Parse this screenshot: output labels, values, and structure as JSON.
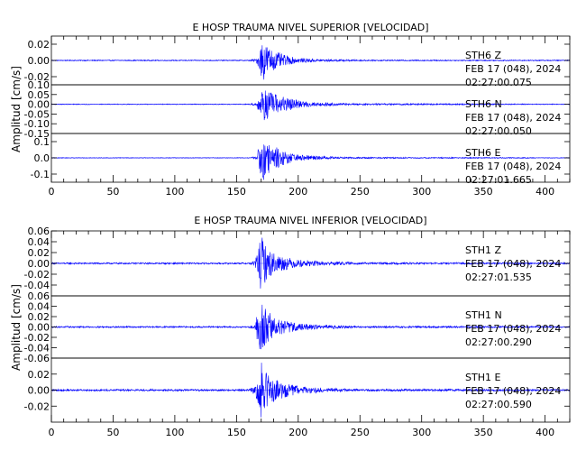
{
  "chart_data": [
    {
      "type": "line",
      "title": "E HOSP TRAUMA NIVEL SUPERIOR [VELOCIDAD]",
      "ylabel": "Amplitud [cm/s]",
      "xlabel": "",
      "xlim": [
        0,
        420
      ],
      "x_ticks": [
        "0",
        "50",
        "100",
        "150",
        "200",
        "250",
        "300",
        "350",
        "400"
      ],
      "line_color": "#0000ff",
      "series": [
        {
          "name": "STH6 Z",
          "annotation": [
            "STH6   Z",
            "FEB 17 (048), 2024",
            "02:27:00.075"
          ],
          "ylim": [
            -0.03,
            0.03
          ],
          "y_ticks": [
            "-0.02",
            "0.00",
            "0.02"
          ],
          "envelope": [
            [
              0,
              0.0006
            ],
            [
              160,
              0.0006
            ],
            [
              166,
              0.002
            ],
            [
              169,
              0.014
            ],
            [
              171,
              0.028
            ],
            [
              174,
              0.02
            ],
            [
              180,
              0.012
            ],
            [
              190,
              0.006
            ],
            [
              200,
              0.003
            ],
            [
              220,
              0.0015
            ],
            [
              260,
              0.0008
            ],
            [
              420,
              0.0006
            ]
          ]
        },
        {
          "name": "STH6 N",
          "annotation": [
            "STH6   N",
            "FEB 17 (048), 2024",
            "02:27:00.050"
          ],
          "ylim": [
            -0.15,
            0.1
          ],
          "y_ticks": [
            "0.10",
            "0.05",
            "0.00",
            "-0.05",
            "-0.10",
            "-0.15"
          ],
          "envelope": [
            [
              0,
              0.002
            ],
            [
              160,
              0.002
            ],
            [
              166,
              0.008
            ],
            [
              169,
              0.05
            ],
            [
              172,
              0.09
            ],
            [
              178,
              0.06
            ],
            [
              190,
              0.035
            ],
            [
              200,
              0.02
            ],
            [
              215,
              0.01
            ],
            [
              240,
              0.005
            ],
            [
              420,
              0.002
            ]
          ]
        },
        {
          "name": "STH6 E",
          "annotation": [
            "STH6   E",
            "FEB 17 (048), 2024",
            "02:27:01.665"
          ],
          "ylim": [
            -0.15,
            0.15
          ],
          "y_ticks": [
            "0.1",
            "0.0",
            "-0.1"
          ],
          "envelope": [
            [
              0,
              0.002
            ],
            [
              160,
              0.002
            ],
            [
              166,
              0.01
            ],
            [
              169,
              0.1
            ],
            [
              172,
              0.14
            ],
            [
              178,
              0.08
            ],
            [
              190,
              0.04
            ],
            [
              200,
              0.02
            ],
            [
              220,
              0.01
            ],
            [
              240,
              0.005
            ],
            [
              420,
              0.002
            ]
          ]
        }
      ]
    },
    {
      "type": "line",
      "title": "E HOSP TRAUMA NIVEL INFERIOR [VELOCIDAD]",
      "ylabel": "Amplitud [cm/s]",
      "xlabel": "",
      "xlim": [
        0,
        420
      ],
      "x_ticks": [
        "0",
        "50",
        "100",
        "150",
        "200",
        "250",
        "300",
        "350",
        "400"
      ],
      "line_color": "#0000ff",
      "series": [
        {
          "name": "STH1 Z",
          "annotation": [
            "STH1   Z",
            "FEB 17 (048), 2024",
            "02:27:01.535"
          ],
          "ylim": [
            -0.06,
            0.06
          ],
          "y_ticks": [
            "0.06",
            "0.04",
            "0.02",
            "0.00",
            "-0.02",
            "-0.04"
          ],
          "envelope": [
            [
              0,
              0.0015
            ],
            [
              160,
              0.0015
            ],
            [
              165,
              0.006
            ],
            [
              168,
              0.03
            ],
            [
              170,
              0.055
            ],
            [
              174,
              0.03
            ],
            [
              180,
              0.02
            ],
            [
              190,
              0.012
            ],
            [
              200,
              0.007
            ],
            [
              220,
              0.004
            ],
            [
              250,
              0.002
            ],
            [
              420,
              0.0015
            ]
          ]
        },
        {
          "name": "STH1 N",
          "annotation": [
            "STH1   N",
            "FEB 17 (048), 2024",
            "02:27:00.290"
          ],
          "ylim": [
            -0.06,
            0.06
          ],
          "y_ticks": [
            "0.06",
            "0.04",
            "0.02",
            "0.00",
            "-0.02",
            "-0.04",
            "-0.06"
          ],
          "envelope": [
            [
              0,
              0.0015
            ],
            [
              160,
              0.0015
            ],
            [
              165,
              0.006
            ],
            [
              168,
              0.04
            ],
            [
              170,
              0.058
            ],
            [
              174,
              0.035
            ],
            [
              180,
              0.02
            ],
            [
              190,
              0.012
            ],
            [
              200,
              0.007
            ],
            [
              220,
              0.004
            ],
            [
              250,
              0.002
            ],
            [
              420,
              0.0015
            ]
          ]
        },
        {
          "name": "STH1 E",
          "annotation": [
            "STH1   E",
            "FEB 17 (048), 2024",
            "02:27:00.590"
          ],
          "ylim": [
            -0.04,
            0.04
          ],
          "y_ticks": [
            "0.02",
            "0.00",
            "-0.02"
          ],
          "envelope": [
            [
              0,
              0.0012
            ],
            [
              160,
              0.0012
            ],
            [
              165,
              0.006
            ],
            [
              168,
              0.025
            ],
            [
              170,
              0.035
            ],
            [
              174,
              0.022
            ],
            [
              180,
              0.015
            ],
            [
              190,
              0.009
            ],
            [
              200,
              0.005
            ],
            [
              220,
              0.003
            ],
            [
              250,
              0.0015
            ],
            [
              420,
              0.0012
            ]
          ]
        }
      ]
    }
  ]
}
